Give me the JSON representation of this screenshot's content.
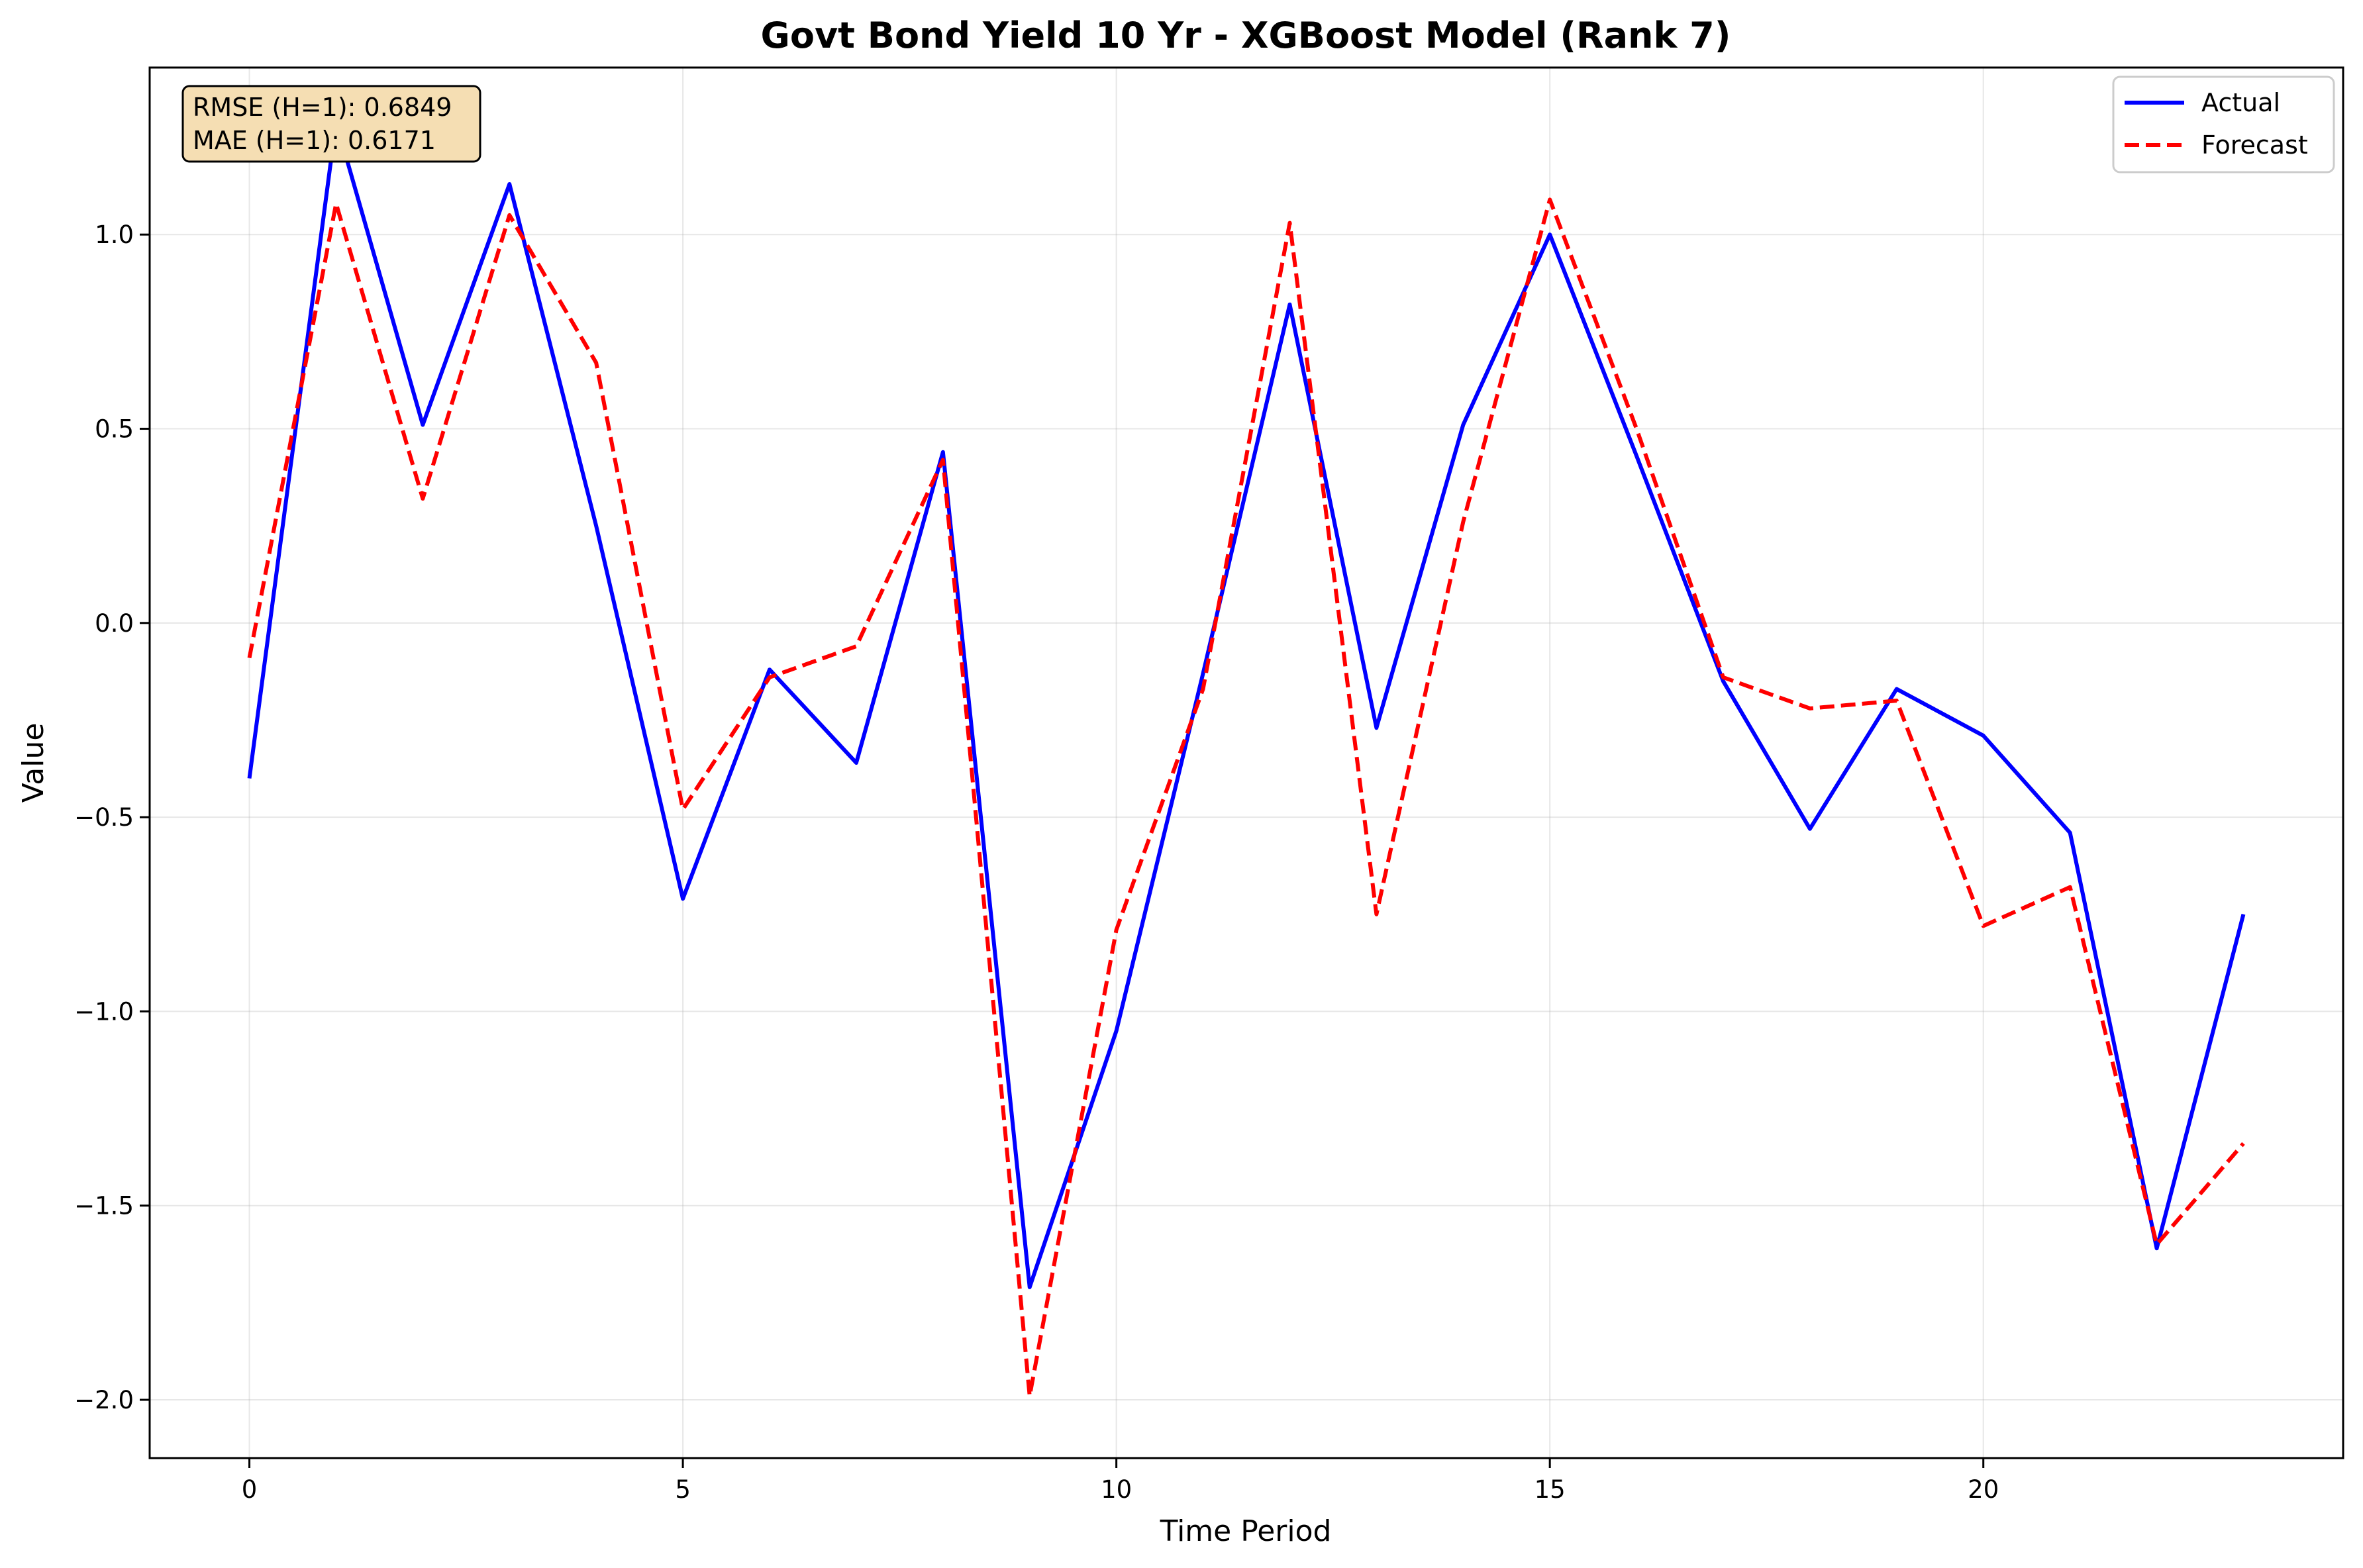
{
  "chart_data": {
    "type": "line",
    "title": "Govt Bond Yield 10 Yr - XGBoost Model (Rank 7)",
    "xlabel": "Time Period",
    "ylabel": "Value",
    "xlim": [
      -1.15,
      24.15
    ],
    "ylim": [
      -2.15,
      1.43
    ],
    "x_ticks": [
      0,
      5,
      10,
      15,
      20
    ],
    "x_tick_labels": [
      "0",
      "5",
      "10",
      "15",
      "20"
    ],
    "y_ticks": [
      1.0,
      0.5,
      0.0,
      -0.5,
      -1.0,
      -1.5,
      -2.0
    ],
    "y_tick_labels": [
      "1.0",
      "0.5",
      "0.0",
      "−0.5",
      "−1.0",
      "−1.5",
      "−2.0"
    ],
    "grid": true,
    "legend_position": "top-right",
    "x": [
      0,
      1,
      2,
      3,
      4,
      5,
      6,
      7,
      8,
      9,
      10,
      11,
      12,
      13,
      14,
      15,
      16,
      17,
      18,
      19,
      20,
      21,
      22,
      23
    ],
    "series": [
      {
        "name": "Actual",
        "color": "#0000ff",
        "style": "solid",
        "values": [
          -0.4,
          1.29,
          0.51,
          1.13,
          0.25,
          -0.71,
          -0.12,
          -0.36,
          0.44,
          -1.71,
          -1.05,
          -0.13,
          0.82,
          -0.27,
          0.51,
          1.0,
          0.43,
          -0.15,
          -0.53,
          -0.17,
          -0.29,
          -0.54,
          -1.61,
          -0.75
        ]
      },
      {
        "name": "Forecast",
        "color": "#ff0000",
        "style": "dashed",
        "values": [
          -0.09,
          1.08,
          0.32,
          1.05,
          0.67,
          -0.48,
          -0.14,
          -0.06,
          0.42,
          -1.99,
          -0.79,
          -0.17,
          1.03,
          -0.75,
          0.26,
          1.09,
          0.5,
          -0.14,
          -0.22,
          -0.2,
          -0.78,
          -0.68,
          -1.6,
          -1.34
        ]
      }
    ],
    "metrics_box": {
      "lines": [
        "RMSE (H=1): 0.6849",
        "MAE (H=1): 0.6171"
      ],
      "background": "#f5deb3"
    }
  }
}
